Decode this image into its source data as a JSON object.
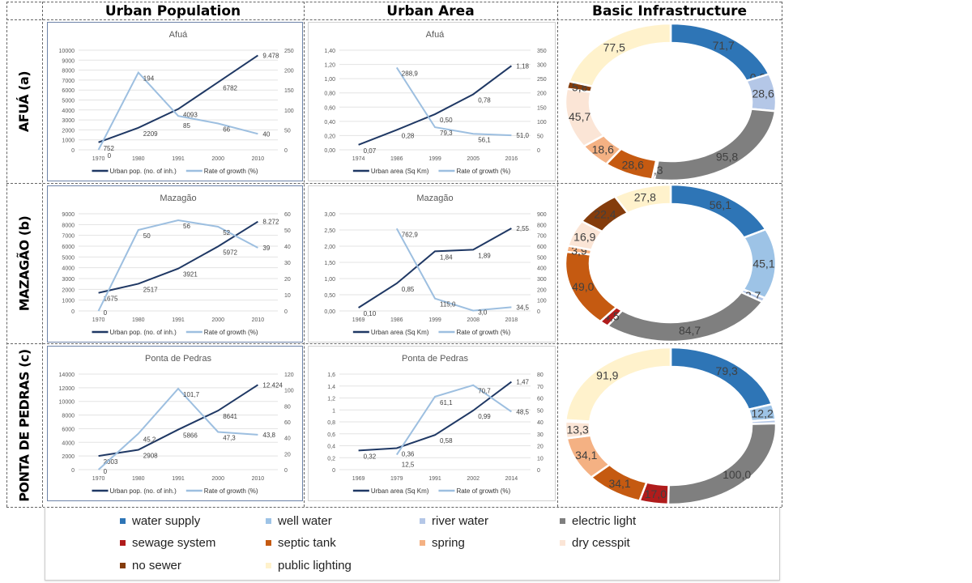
{
  "columns": [
    "Urban Population",
    "Urban Area",
    "Basic Infrastructure"
  ],
  "rows": [
    "AFUÁ (a)",
    "MAZAGÃO (b)",
    "PONTA DE PEDRAS (c)"
  ],
  "colors": {
    "stock": "#1f3864",
    "rate": "#9dbfe0"
  },
  "chart_data": [
    {
      "type": "line",
      "panel": "urban-population",
      "title": "Afuá",
      "x": [
        "1970",
        "1980",
        "1991",
        "2000",
        "2010"
      ],
      "left": {
        "ticks": [
          "0",
          "1000",
          "2000",
          "3000",
          "4000",
          "5000",
          "6000",
          "7000",
          "8000",
          "9000",
          "10000"
        ],
        "name": "Urban pop. (no. of inh.)",
        "values": [
          752,
          2209,
          4093,
          6782,
          9478
        ],
        "labels": [
          "752",
          "2209",
          "4093",
          "6782",
          "9.478"
        ]
      },
      "right": {
        "ticks": [
          "0",
          "50",
          "100",
          "150",
          "200",
          "250"
        ],
        "name": "Rate of growth (%)",
        "values": [
          0,
          194,
          85,
          66,
          40
        ],
        "labels": [
          "0",
          "194",
          "85",
          "66",
          "40"
        ]
      }
    },
    {
      "type": "line",
      "panel": "urban-area",
      "title": "Afuá",
      "x": [
        "1974",
        "1986",
        "1999",
        "2005",
        "2016"
      ],
      "left": {
        "ticks": [
          "0,00",
          "0,20",
          "0,40",
          "0,60",
          "0,80",
          "1,00",
          "1,20",
          "1,40"
        ],
        "name": "Urban area (Sq Km)",
        "values": [
          0.07,
          0.28,
          0.5,
          0.78,
          1.18
        ],
        "labels": [
          "0,07",
          "0,28",
          "0,50",
          "0,78",
          "1,18"
        ]
      },
      "right": {
        "ticks": [
          "0",
          "50",
          "100",
          "150",
          "200",
          "250",
          "300",
          "350"
        ],
        "name": "Rate of growth (%)",
        "values": [
          null,
          288.9,
          79.3,
          56.1,
          51.0
        ],
        "labels": [
          "",
          "288,9",
          "79,3",
          "56,1",
          "51,0"
        ]
      }
    },
    {
      "type": "pie",
      "panel": "basic-infrastructure",
      "region": "Afuá",
      "values": [
        71.7,
        0.0,
        28.6,
        95.8,
        1.3,
        28.6,
        18.6,
        45.7,
        5.8,
        77.5
      ]
    },
    {
      "type": "line",
      "panel": "urban-population",
      "title": "Mazagão",
      "x": [
        "1970",
        "1980",
        "1991",
        "2000",
        "2010"
      ],
      "left": {
        "ticks": [
          "0",
          "1000",
          "2000",
          "3000",
          "4000",
          "5000",
          "6000",
          "7000",
          "8000",
          "9000"
        ],
        "name": "Urban pop. (no. of inh.)",
        "values": [
          1675,
          2517,
          3921,
          5972,
          8272
        ],
        "labels": [
          "1675",
          "2517",
          "3921",
          "5972",
          "8.272"
        ]
      },
      "right": {
        "ticks": [
          "0",
          "10",
          "20",
          "30",
          "40",
          "50",
          "60"
        ],
        "name": "Rate of growth (%)",
        "values": [
          0,
          50,
          56,
          52,
          39
        ],
        "labels": [
          "0",
          "50",
          "56",
          "52",
          "39"
        ]
      }
    },
    {
      "type": "line",
      "panel": "urban-area",
      "title": "Mazagão",
      "x": [
        "1969",
        "1986",
        "1999",
        "2008",
        "2018"
      ],
      "left": {
        "ticks": [
          "0,00",
          "0,50",
          "1,00",
          "1,50",
          "2,00",
          "2,50",
          "3,00"
        ],
        "name": "Urban area (Sq Km)",
        "values": [
          0.1,
          0.85,
          1.84,
          1.89,
          2.55
        ],
        "labels": [
          "0,10",
          "0,85",
          "1,84",
          "1,89",
          "2,55"
        ]
      },
      "right": {
        "ticks": [
          "0",
          "100",
          "200",
          "300",
          "400",
          "500",
          "600",
          "700",
          "800",
          "900"
        ],
        "name": "Rate of growth (%)",
        "values": [
          null,
          762.9,
          115.0,
          3.0,
          34.5
        ],
        "labels": [
          "",
          "762,9",
          "115,0",
          "3,0",
          "34,5"
        ]
      }
    },
    {
      "type": "pie",
      "panel": "basic-infrastructure",
      "region": "Mazagão",
      "values": [
        56.1,
        45.1,
        2.7,
        84.7,
        4.5,
        49.0,
        3.9,
        16.9,
        22.4,
        27.8
      ]
    },
    {
      "type": "line",
      "panel": "urban-population",
      "title": "Ponta de Pedras",
      "x": [
        "1970",
        "1980",
        "1991",
        "2000",
        "2010"
      ],
      "left": {
        "ticks": [
          "0",
          "2000",
          "4000",
          "6000",
          "8000",
          "10000",
          "12000",
          "14000"
        ],
        "name": "Urban pop. (no. of inh.)",
        "values": [
          2003,
          2908,
          5866,
          8641,
          12424
        ],
        "labels": [
          "2003",
          "2908",
          "5866",
          "8641",
          "12.424"
        ]
      },
      "right": {
        "ticks": [
          "0",
          "20",
          "40",
          "60",
          "80",
          "100",
          "120"
        ],
        "name": "Rate of growth (%)",
        "values": [
          0,
          45.2,
          101.7,
          47.3,
          43.8
        ],
        "labels": [
          "0",
          "45,2",
          "101,7",
          "47,3",
          "43,8"
        ]
      }
    },
    {
      "type": "line",
      "panel": "urban-area",
      "title": "Ponta de Pedras",
      "x": [
        "1969",
        "1979",
        "1991",
        "2002",
        "2014"
      ],
      "left": {
        "ticks": [
          "0",
          "0,2",
          "0,4",
          "0,6",
          "0,8",
          "1",
          "1,2",
          "1,4",
          "1,6"
        ],
        "name": "Urban area (Sq Km)",
        "values": [
          0.32,
          0.36,
          0.58,
          0.99,
          1.47
        ],
        "labels": [
          "0,32",
          "0,36",
          "0,58",
          "0,99",
          "1,47"
        ]
      },
      "right": {
        "ticks": [
          "0",
          "10",
          "20",
          "30",
          "40",
          "50",
          "60",
          "70",
          "80"
        ],
        "name": "Rate of growth (%)",
        "values": [
          null,
          12.5,
          61.1,
          70.7,
          48.5
        ],
        "labels": [
          "",
          "12,5",
          "61,1",
          "70,7",
          "48,5"
        ]
      }
    },
    {
      "type": "pie",
      "panel": "basic-infrastructure",
      "region": "Ponta de Pedras",
      "values": [
        79.3,
        12.2,
        3.0,
        100.0,
        17.0,
        34.1,
        34.1,
        13.3,
        1.1,
        91.9
      ]
    }
  ],
  "legend": [
    {
      "label": "water supply",
      "color": "#2e75b6"
    },
    {
      "label": "well water",
      "color": "#9dc3e6"
    },
    {
      "label": "river water",
      "color": "#b4c7e7"
    },
    {
      "label": "electric light",
      "color": "#7f7f7f"
    },
    {
      "label": "sewage system",
      "color": "#b01c1c"
    },
    {
      "label": "septic tank",
      "color": "#c55a11"
    },
    {
      "label": "spring",
      "color": "#f4b183"
    },
    {
      "label": "dry cesspit",
      "color": "#fbe5d6"
    },
    {
      "label": "no sewer",
      "color": "#843c0c"
    },
    {
      "label": "public lighting",
      "color": "#fff2cc"
    }
  ]
}
